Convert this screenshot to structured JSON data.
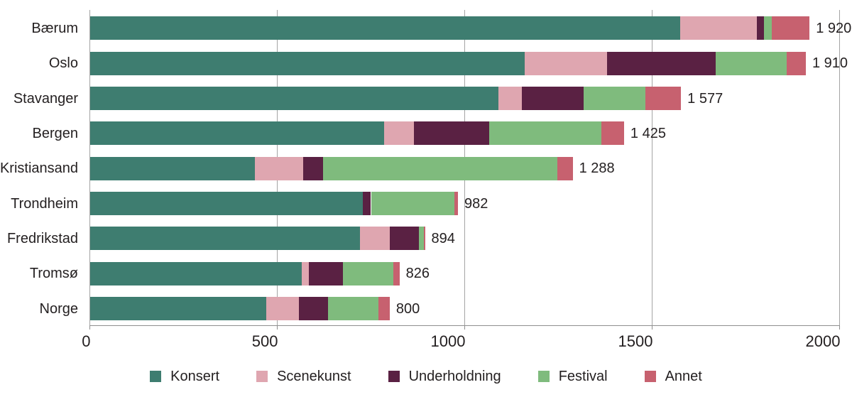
{
  "figure": {
    "background": "#FFFFFF",
    "text_color": "#231F20",
    "grid_color": "#A4A4A4",
    "axis_color": "#8F8F8F"
  },
  "chart_data": {
    "type": "bar",
    "orientation": "horizontal",
    "stacked": true,
    "grid": true,
    "legend_position": "bottom",
    "xlim": [
      0,
      2000
    ],
    "x_ticks": [
      0,
      500,
      1000,
      1500,
      2000
    ],
    "x_tick_labels": [
      "0",
      "500",
      "1000",
      "1500",
      "2000"
    ],
    "categories": [
      "Bærum",
      "Oslo",
      "Stavanger",
      "Bergen",
      "Kristiansand",
      "Trondheim",
      "Fredrikstad",
      "Tromsø",
      "Norge"
    ],
    "series": [
      {
        "name": "Konsert",
        "color": "#3E7D70",
        "values": [
          1575,
          1160,
          1090,
          785,
          440,
          728,
          720,
          565,
          470
        ]
      },
      {
        "name": "Scenekunst",
        "color": "#DFA6B0",
        "values": [
          205,
          220,
          62,
          80,
          130,
          0,
          80,
          20,
          88
        ]
      },
      {
        "name": "Underholdning",
        "color": "#5A2143",
        "values": [
          18,
          290,
          165,
          200,
          53,
          22,
          77,
          90,
          77
        ]
      },
      {
        "name": "Festival",
        "color": "#7FBB7D",
        "values": [
          22,
          188,
          165,
          300,
          625,
          222,
          14,
          135,
          135
        ]
      },
      {
        "name": "Annet",
        "color": "#C7616F",
        "values": [
          100,
          52,
          95,
          60,
          40,
          10,
          3,
          16,
          30
        ]
      }
    ],
    "totals": [
      1920,
      1910,
      1577,
      1425,
      1288,
      982,
      894,
      826,
      800
    ],
    "total_labels": [
      "1 920",
      "1 910",
      "1 577",
      "1 425",
      "1 288",
      "982",
      "894",
      "826",
      "800"
    ]
  }
}
